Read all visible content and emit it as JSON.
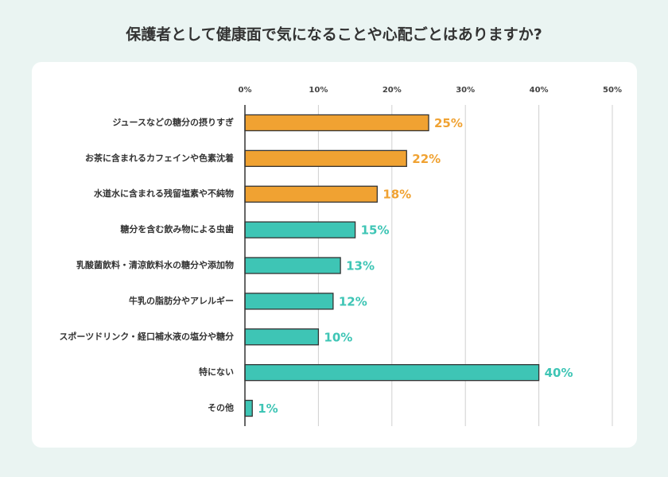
{
  "chart_data": {
    "type": "bar",
    "orientation": "horizontal",
    "title": "保護者として健康面で気になることや心配ごとはありますか?",
    "categories": [
      "ジュースなどの糖分の摂りすぎ",
      "お茶に含まれるカフェインや色素沈着",
      "水道水に含まれる残留塩素や不純物",
      "糖分を含む飲み物による虫歯",
      "乳酸菌飲料・清涼飲料水の糖分や添加物",
      "牛乳の脂肪分やアレルギー",
      "スポーツドリンク・経口補水液の塩分や糖分",
      "特にない",
      "その他"
    ],
    "values": [
      25,
      22,
      18,
      15,
      13,
      12,
      10,
      40,
      1
    ],
    "value_labels": [
      "25%",
      "22%",
      "18%",
      "15%",
      "13%",
      "12%",
      "10%",
      "40%",
      "1%"
    ],
    "colors": [
      "#f0a232",
      "#f0a232",
      "#f0a232",
      "#3ec5b5",
      "#3ec5b5",
      "#3ec5b5",
      "#3ec5b5",
      "#3ec5b5",
      "#3ec5b5"
    ],
    "xlim": [
      0,
      50
    ],
    "xticks": [
      {
        "value": 0,
        "label": "0%"
      },
      {
        "value": 10,
        "label": "10%"
      },
      {
        "value": 20,
        "label": "20%"
      },
      {
        "value": 30,
        "label": "30%"
      },
      {
        "value": 40,
        "label": "40%"
      },
      {
        "value": 50,
        "label": "50%"
      }
    ],
    "grid": true
  }
}
